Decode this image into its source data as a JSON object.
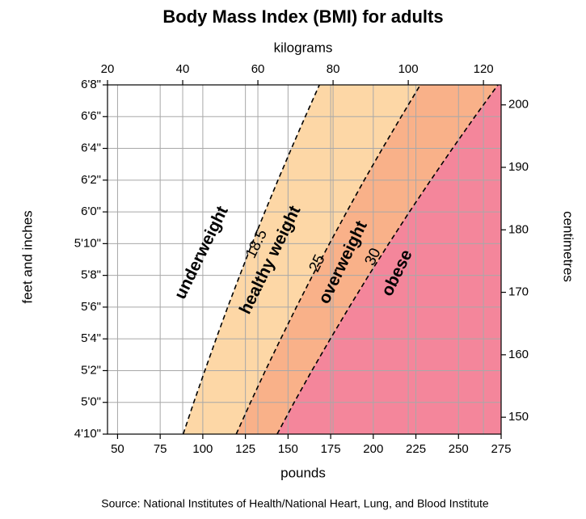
{
  "chart_data": {
    "type": "bmi-bands",
    "title": "Body Mass Index (BMI) for adults",
    "x_label": "pounds",
    "x2_label": "kilograms",
    "y_label": "feet and inches",
    "y2_label": "centimetres",
    "source": "Source: National Institutes of Health/National Heart, Lung, and Blood Institute",
    "xlim": [
      44.1,
      275
    ],
    "xticks": [
      50,
      75,
      100,
      125,
      150,
      175,
      200,
      225,
      250,
      275
    ],
    "x2lim": [
      20,
      124.7
    ],
    "x2ticks": [
      20,
      40,
      60,
      80,
      100,
      120
    ],
    "ylim": [
      58,
      80
    ],
    "yticks": [
      {
        "value": 58,
        "label": "4'10\""
      },
      {
        "value": 60,
        "label": "5'0\""
      },
      {
        "value": 62,
        "label": "5'2\""
      },
      {
        "value": 64,
        "label": "5'4\""
      },
      {
        "value": 66,
        "label": "5'6\""
      },
      {
        "value": 68,
        "label": "5'8\""
      },
      {
        "value": 70,
        "label": "5'10\""
      },
      {
        "value": 72,
        "label": "6'0\""
      },
      {
        "value": 74,
        "label": "6'2\""
      },
      {
        "value": 76,
        "label": "6'4\""
      },
      {
        "value": 78,
        "label": "6'6\""
      },
      {
        "value": 80,
        "label": "6'8\""
      }
    ],
    "y2lim": [
      147.3,
      203.2
    ],
    "y2ticks": [
      150,
      160,
      170,
      180,
      190,
      200
    ],
    "grid": true,
    "series": [
      {
        "name": "18.5",
        "color": "#000000",
        "x": [
          88.5,
          94.7,
          101.2,
          107.8,
          114.6,
          121.7,
          128.9,
          136.4,
          144.1,
          152.0,
          160.1,
          168.4
        ],
        "values": [
          58,
          60,
          62,
          64,
          66,
          68,
          70,
          72,
          74,
          76,
          78,
          80
        ]
      },
      {
        "name": "25",
        "color": "#000000",
        "x": [
          119.6,
          128.0,
          136.7,
          145.7,
          154.9,
          164.4,
          174.3,
          184.4,
          194.7,
          205.4,
          216.4,
          227.6
        ],
        "values": [
          58,
          60,
          62,
          64,
          66,
          68,
          70,
          72,
          74,
          76,
          78,
          80
        ]
      },
      {
        "name": "30",
        "color": "#000000",
        "x": [
          143.6,
          153.6,
          164.0,
          174.8,
          185.9,
          197.3,
          209.1,
          221.2,
          233.7,
          246.5,
          259.6,
          273.1
        ],
        "values": [
          58,
          60,
          62,
          64,
          66,
          68,
          70,
          72,
          74,
          76,
          78,
          80
        ]
      }
    ],
    "regions": [
      {
        "name": "underweight",
        "color": "#ffffff"
      },
      {
        "name": "healthy weight",
        "color": "#fdd7a6"
      },
      {
        "name": "overweight",
        "color": "#f9b189"
      },
      {
        "name": "obese",
        "color": "#f4869b"
      }
    ]
  }
}
